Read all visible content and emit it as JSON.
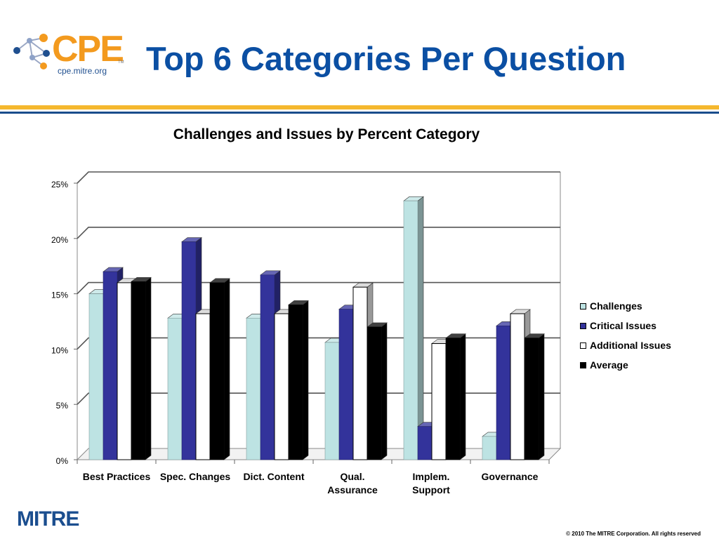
{
  "header": {
    "logo_text": "CPE",
    "logo_tm": "TM",
    "logo_sub": "cpe.mitre.org",
    "title": "Top 6 Categories Per Question"
  },
  "colors": {
    "title_blue": "#0b4fa3",
    "logo_orange": "#f39a1e",
    "rule_gold": "#f5b82e",
    "rule_blue": "#1a4d8c"
  },
  "chart_data": {
    "type": "bar",
    "title": "Challenges and Issues by Percent Category",
    "categories": [
      "Best Practices",
      "Spec. Changes",
      "Dict. Content",
      "Qual. Assurance",
      "Implem. Support",
      "Governance"
    ],
    "category_lines": [
      [
        "Best Practices"
      ],
      [
        "Spec. Changes"
      ],
      [
        "Dict. Content"
      ],
      [
        "Qual.",
        "Assurance"
      ],
      [
        "Implem.",
        "Support"
      ],
      [
        "Governance"
      ]
    ],
    "series": [
      {
        "name": "Challenges",
        "color": "#bde3e3",
        "values": [
          15.0,
          12.8,
          12.8,
          10.6,
          23.4,
          2.1
        ]
      },
      {
        "name": "Critical Issues",
        "color": "#33339b",
        "values": [
          17.0,
          19.7,
          16.7,
          13.6,
          3.0,
          12.1
        ]
      },
      {
        "name": "Additional Issues",
        "color": "#ffffff",
        "values": [
          16.0,
          13.2,
          13.2,
          15.6,
          10.5,
          13.2
        ]
      },
      {
        "name": "Average",
        "color": "#000000",
        "values": [
          16.1,
          16.0,
          14.0,
          12.0,
          11.0,
          11.0
        ]
      }
    ],
    "yticks": [
      "0%",
      "5%",
      "10%",
      "15%",
      "20%",
      "25%"
    ],
    "ylim": [
      0,
      25
    ],
    "grid": true,
    "legend_position": "right"
  },
  "footer": {
    "brand": "MITRE",
    "copyright": "© 2010 The MITRE Corporation. All rights reserved"
  }
}
